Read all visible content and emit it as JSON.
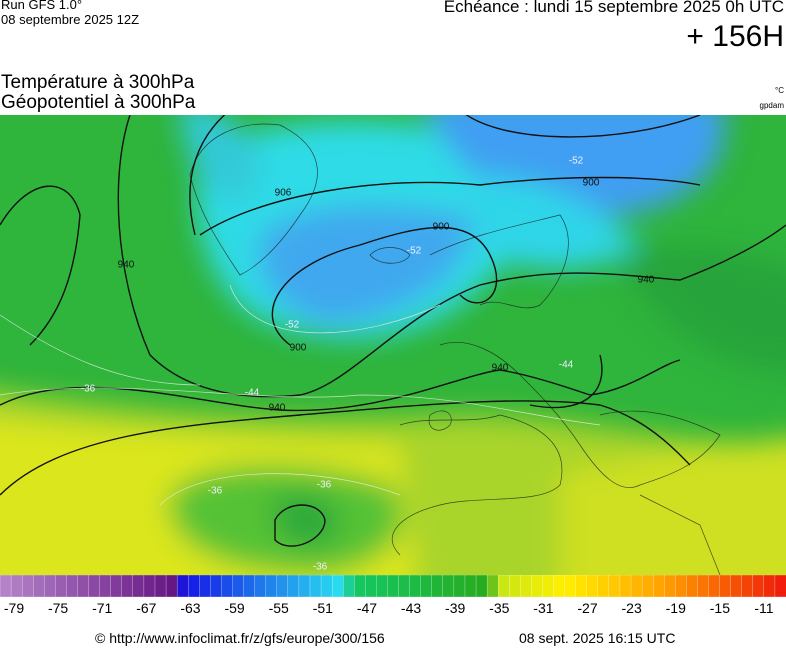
{
  "header": {
    "model": "Run GFS 1.0°",
    "run": "08 septembre 2025 12Z",
    "valid": "Echéance : lundi 15 septembre 2025 0h UTC",
    "lead": "+ 156H"
  },
  "titles": {
    "temperature": "Température à 300hPa",
    "geopotential": "Géopotentiel à 300hPa",
    "unit_temp": "°C",
    "unit_geo": "gpdam"
  },
  "map": {
    "contour_labels": [
      "906",
      "900",
      "900",
      "900",
      "940",
      "940",
      "940",
      "940",
      "-52",
      "-52",
      "-52",
      "-44",
      "-44",
      "-36",
      "-36",
      "-36",
      "-36"
    ]
  },
  "scale": {
    "labels": [
      "-79",
      "-75",
      "-71",
      "-67",
      "-63",
      "-59",
      "-55",
      "-51",
      "-47",
      "-43",
      "-39",
      "-35",
      "-31",
      "-27",
      "-23",
      "-19",
      "-15",
      "-11"
    ]
  },
  "footer": {
    "url": "© http://www.infoclimat.fr/z/gfs/europe/300/156",
    "updated": "08 sept. 2025 16:15 UTC"
  }
}
